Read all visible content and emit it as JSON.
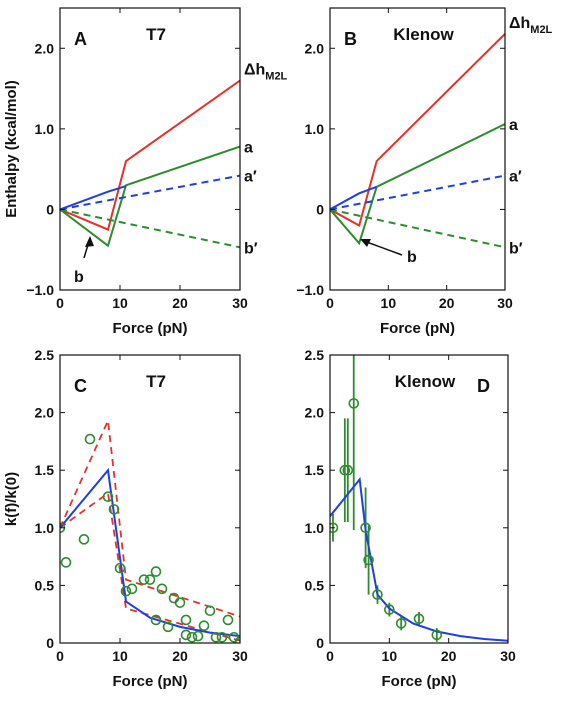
{
  "chart_data": [
    {
      "panel": "A",
      "title": "T7",
      "type": "line",
      "xlabel": "Force (pN)",
      "ylabel": "Enthalpy (kcal/mol)",
      "xlim": [
        0,
        30
      ],
      "ylim": [
        -1.0,
        2.5
      ],
      "xticks": [
        "0",
        "10",
        "20",
        "30"
      ],
      "yticks": [
        "−1.0",
        "0",
        "1.0",
        "2.0"
      ],
      "series": [
        {
          "name": "Δh_M2L",
          "color": "#e8302a",
          "dash": false,
          "x": [
            0,
            8,
            11,
            30
          ],
          "y": [
            0,
            -0.25,
            0.6,
            1.6
          ]
        },
        {
          "name": "a",
          "color": "#2e8b2e",
          "dash": false,
          "x": [
            0,
            8,
            11,
            30
          ],
          "y": [
            0,
            -0.45,
            0.3,
            0.78
          ]
        },
        {
          "name": "a′",
          "color": "#1f3fe0",
          "dash": true,
          "x": [
            0,
            30
          ],
          "y": [
            0,
            0.42
          ]
        },
        {
          "name": "b′",
          "color": "#2e8b2e",
          "dash": true,
          "x": [
            0,
            30
          ],
          "y": [
            0,
            -0.47
          ]
        },
        {
          "name": "",
          "color": "#1f3fe0",
          "dash": false,
          "x": [
            0,
            8,
            11
          ],
          "y": [
            0,
            0.22,
            0.29
          ]
        }
      ],
      "arrow_label": "b",
      "series_labels": [
        {
          "text": "Δh",
          "sub": "M2L"
        },
        {
          "text": "a"
        },
        {
          "text": "a′"
        },
        {
          "text": "b′"
        }
      ]
    },
    {
      "panel": "B",
      "title": "Klenow",
      "type": "line",
      "xlabel": "Force (pN)",
      "ylabel": "",
      "xlim": [
        0,
        30
      ],
      "ylim": [
        -1.0,
        2.5
      ],
      "xticks": [
        "0",
        "10",
        "20",
        "30"
      ],
      "yticks": [
        "−1.0",
        "0",
        "1.0",
        "2.0"
      ],
      "series": [
        {
          "name": "Δh_M2L",
          "color": "#e8302a",
          "dash": false,
          "x": [
            0,
            5,
            8,
            30
          ],
          "y": [
            0,
            -0.2,
            0.6,
            2.18
          ]
        },
        {
          "name": "a",
          "color": "#2e8b2e",
          "dash": false,
          "x": [
            0,
            5,
            8,
            30
          ],
          "y": [
            0,
            -0.42,
            0.28,
            1.06
          ]
        },
        {
          "name": "a′",
          "color": "#1f3fe0",
          "dash": true,
          "x": [
            0,
            30
          ],
          "y": [
            0,
            0.42
          ]
        },
        {
          "name": "b′",
          "color": "#2e8b2e",
          "dash": true,
          "x": [
            0,
            30
          ],
          "y": [
            0,
            -0.47
          ]
        },
        {
          "name": "",
          "color": "#1f3fe0",
          "dash": false,
          "x": [
            0,
            5,
            8
          ],
          "y": [
            0,
            0.2,
            0.28
          ]
        }
      ],
      "arrow_label": "b",
      "series_labels": [
        {
          "text": "Δh",
          "sub": "M2L"
        },
        {
          "text": "a"
        },
        {
          "text": "a′"
        },
        {
          "text": "b′"
        }
      ]
    },
    {
      "panel": "C",
      "title": "T7",
      "type": "scatter",
      "xlabel": "Force (pN)",
      "ylabel": "k(f)/k(0)",
      "xlim": [
        0,
        30
      ],
      "ylim": [
        0,
        2.5
      ],
      "xticks": [
        "0",
        "10",
        "20",
        "30"
      ],
      "yticks": [
        "0",
        "0.5",
        "1.0",
        "1.5",
        "2.0",
        "2.5"
      ],
      "fit_line": {
        "color": "#1f3fe0",
        "x": [
          0,
          8,
          11,
          15,
          20,
          25,
          30
        ],
        "y": [
          1.0,
          1.5,
          0.36,
          0.22,
          0.14,
          0.09,
          0.06
        ]
      },
      "upper_bound": {
        "color": "#e8302a",
        "x": [
          0,
          8,
          11,
          30
        ],
        "y": [
          1.0,
          1.93,
          0.55,
          0.23
        ]
      },
      "lower_bound": {
        "color": "#e8302a",
        "x": [
          0,
          8,
          11,
          30
        ],
        "y": [
          1.0,
          1.3,
          0.3,
          0.02
        ]
      },
      "points": {
        "color": "#2e8b2e",
        "x": [
          0,
          1,
          4,
          5,
          8,
          9,
          10,
          11,
          12,
          14,
          15,
          16,
          16,
          17,
          18,
          19,
          20,
          21,
          21,
          22,
          23,
          24,
          25,
          26,
          27,
          28,
          29,
          30
        ],
        "y": [
          1.0,
          0.7,
          0.9,
          1.77,
          1.27,
          1.16,
          0.65,
          0.45,
          0.47,
          0.55,
          0.55,
          0.62,
          0.2,
          0.47,
          0.14,
          0.39,
          0.35,
          0.2,
          0.07,
          0.05,
          0.06,
          0.15,
          0.28,
          0.05,
          0.05,
          0.2,
          0.05,
          0.01
        ]
      }
    },
    {
      "panel": "D",
      "title": "Klenow",
      "type": "scatter",
      "xlabel": "Force (pN)",
      "ylabel": "",
      "xlim": [
        0,
        30
      ],
      "ylim": [
        0,
        2.5
      ],
      "xticks": [
        "0",
        "10",
        "20",
        "30"
      ],
      "yticks": [
        "0",
        "0.5",
        "1.0",
        "1.5",
        "2.0",
        "2.5"
      ],
      "fit_line": {
        "color": "#1f3fe0",
        "x": [
          0,
          5,
          6,
          8,
          10,
          14,
          18,
          22,
          26,
          30
        ],
        "y": [
          1.1,
          1.42,
          0.98,
          0.42,
          0.3,
          0.17,
          0.1,
          0.06,
          0.035,
          0.02
        ]
      },
      "points": {
        "color": "#2e8b2e",
        "x": [
          0.5,
          2.5,
          3,
          4,
          6,
          6.5,
          8,
          10,
          12,
          15,
          18
        ],
        "y": [
          1.0,
          1.5,
          1.5,
          2.08,
          1.0,
          0.72,
          0.42,
          0.29,
          0.17,
          0.21,
          0.07
        ],
        "err": [
          0.12,
          0.45,
          0.45,
          1.1,
          0.35,
          0.3,
          0.08,
          0.06,
          0.06,
          0.06,
          0.06
        ]
      }
    }
  ]
}
